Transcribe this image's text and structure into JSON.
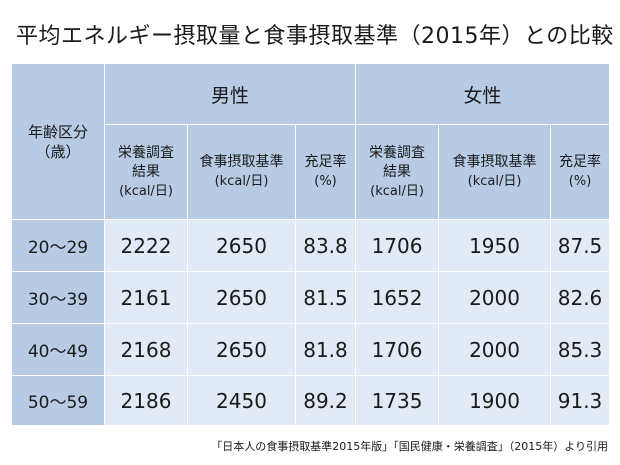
{
  "title": "平均エネルギー摂取量と食事摂取基準（2015年）との比較",
  "header": {
    "age_label": "年齢区分",
    "age_unit": "（歳）",
    "male": "男性",
    "female": "女性",
    "columns": [
      {
        "line1": "栄養調査",
        "line2": "結果",
        "unit": "(kcal/日)"
      },
      {
        "line1": "食事摂取基準",
        "line2": "",
        "unit": "(kcal/日)"
      },
      {
        "line1": "充足率",
        "line2": "",
        "unit": "(%)"
      },
      {
        "line1": "栄養調査",
        "line2": "結果",
        "unit": "(kcal/日)"
      },
      {
        "line1": "食事摂取基準",
        "line2": "",
        "unit": "(kcal/日)"
      },
      {
        "line1": "充足率",
        "line2": "",
        "unit": "(%)"
      }
    ]
  },
  "rows": [
    {
      "age": "20～29",
      "values": [
        "2222",
        "2650",
        "83.8",
        "1706",
        "1950",
        "87.5"
      ]
    },
    {
      "age": "30～39",
      "values": [
        "2161",
        "2650",
        "81.5",
        "1652",
        "2000",
        "82.6"
      ]
    },
    {
      "age": "40～49",
      "values": [
        "2168",
        "2650",
        "81.8",
        "1706",
        "2000",
        "85.3"
      ]
    },
    {
      "age": "50～59",
      "values": [
        "2186",
        "2450",
        "89.2",
        "1735",
        "1900",
        "91.3"
      ]
    }
  ],
  "source": "「日本人の食事摂取基準2015年版」「国民健康・栄養調査」（2015年）より引用",
  "colors": {
    "header_bg": "#b7cbe5",
    "body_bg": "#e2eaf5"
  }
}
